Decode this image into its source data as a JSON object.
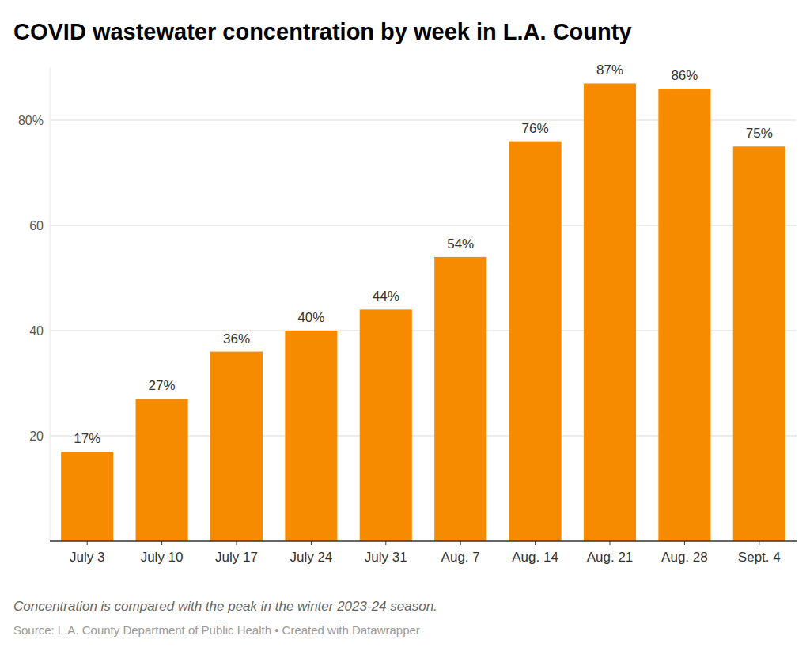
{
  "chart_data": {
    "type": "bar",
    "title": "COVID wastewater concentration by week in L.A. County",
    "categories": [
      "July 3",
      "July 10",
      "July 17",
      "July 24",
      "July 31",
      "Aug. 7",
      "Aug. 14",
      "Aug. 21",
      "Aug. 28",
      "Sept. 4"
    ],
    "values": [
      17,
      27,
      36,
      40,
      44,
      54,
      76,
      87,
      86,
      75
    ],
    "value_labels": [
      "17%",
      "27%",
      "36%",
      "40%",
      "44%",
      "54%",
      "76%",
      "87%",
      "86%",
      "75%"
    ],
    "color": "#f78b00",
    "ylim": [
      0,
      90
    ],
    "yticks": [
      20,
      40,
      60,
      {
        "value": 80,
        "label": "80%"
      }
    ],
    "grid": true,
    "data_labels": true,
    "caption": "Concentration is compared with the peak in the winter 2023-24 season.",
    "source": "Source: L.A. County Department of Public Health • Created with Datawrapper"
  }
}
